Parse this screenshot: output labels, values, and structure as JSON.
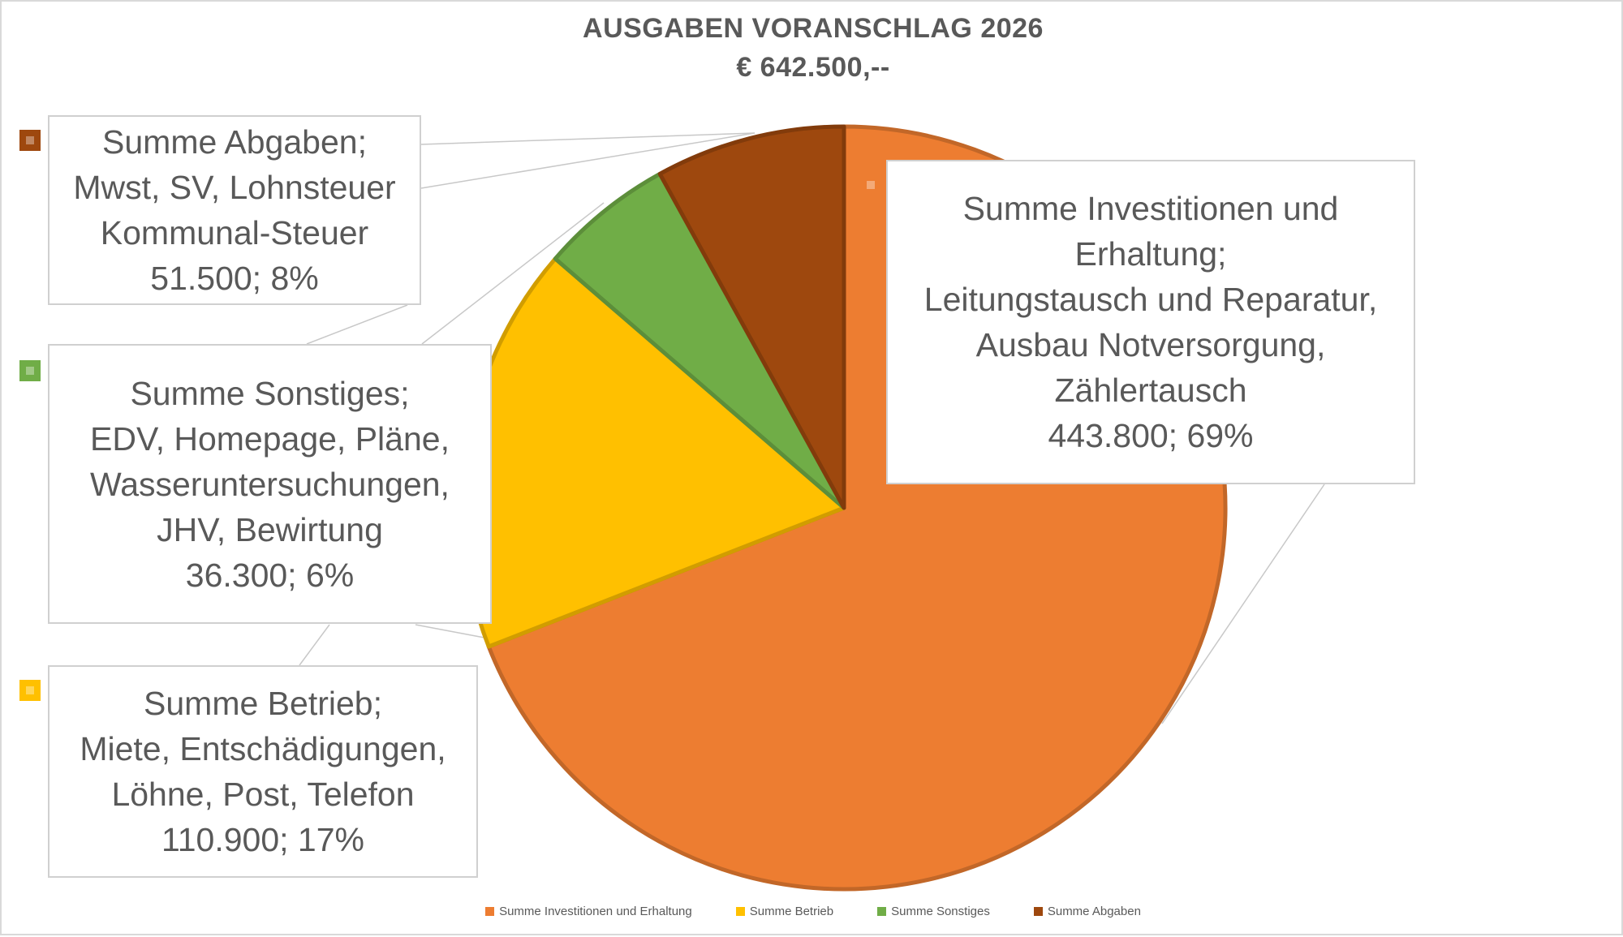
{
  "chart_data": {
    "type": "pie",
    "title": "AUSGABEN VORANSCHLAG 2026",
    "subtitle": "€ 642.500,--",
    "legend_position": "bottom",
    "slices": [
      {
        "name": "Summe Investitionen und  Erhaltung",
        "value": 443800,
        "percent": 69,
        "color": "#ED7D31",
        "label_lines": [
          "Summe Investitionen und",
          "Erhaltung;",
          "Leitungstausch und Reparatur,",
          "Ausbau Notversorgung,",
          "Zählertausch",
          "443.800; 69%"
        ]
      },
      {
        "name": "Summe Betrieb",
        "value": 110900,
        "percent": 17,
        "color": "#FFC000",
        "label_lines": [
          "Summe Betrieb;",
          "Miete, Entschädigungen,",
          "Löhne, Post, Telefon",
          "110.900; 17%"
        ]
      },
      {
        "name": "Summe Sonstiges",
        "value": 36300,
        "percent": 6,
        "color": "#70AD47",
        "label_lines": [
          "Summe Sonstiges;",
          "EDV, Homepage, Pläne,",
          "Wasseruntersuchungen,",
          "JHV, Bewirtung",
          "36.300; 6%"
        ]
      },
      {
        "name": "Summe Abgaben",
        "value": 51500,
        "percent": 8,
        "color": "#9E480E",
        "label_lines": [
          "Summe Abgaben;",
          "Mwst, SV, Lohnsteuer",
          "Kommunal-Steuer",
          "51.500; 8%"
        ]
      }
    ]
  }
}
